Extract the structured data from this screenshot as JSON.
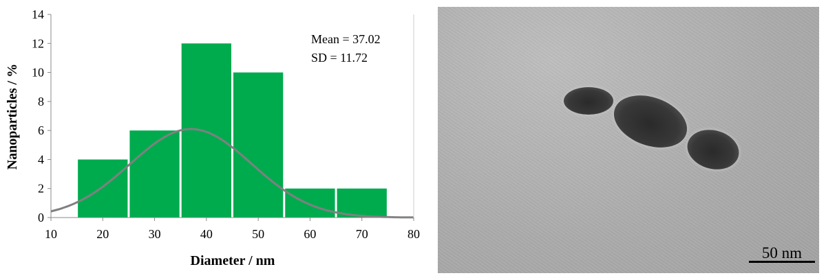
{
  "chart_data": {
    "type": "bar",
    "title": "",
    "xlabel": "Diameter / nm",
    "ylabel": "Nanoparticles / %",
    "xlim": [
      10,
      80
    ],
    "ylim": [
      0,
      14
    ],
    "xticks": [
      10,
      20,
      30,
      40,
      50,
      60,
      70,
      80
    ],
    "yticks": [
      0,
      2,
      4,
      6,
      8,
      10,
      12,
      14
    ],
    "bins": [
      [
        15,
        25
      ],
      [
        25,
        35
      ],
      [
        35,
        45
      ],
      [
        45,
        55
      ],
      [
        55,
        65
      ],
      [
        65,
        75
      ]
    ],
    "values": [
      4,
      6,
      12,
      10,
      2,
      2
    ],
    "bar_color": "#00ab4e",
    "fit": {
      "type": "normal",
      "mean": 37.02,
      "sd": 11.72,
      "peak": 6.1,
      "color": "#808080"
    },
    "annotations": [
      "Mean = 37.02",
      "SD = 11.72"
    ],
    "grid": false
  },
  "image": {
    "scale_bar_label": "50 nm"
  }
}
